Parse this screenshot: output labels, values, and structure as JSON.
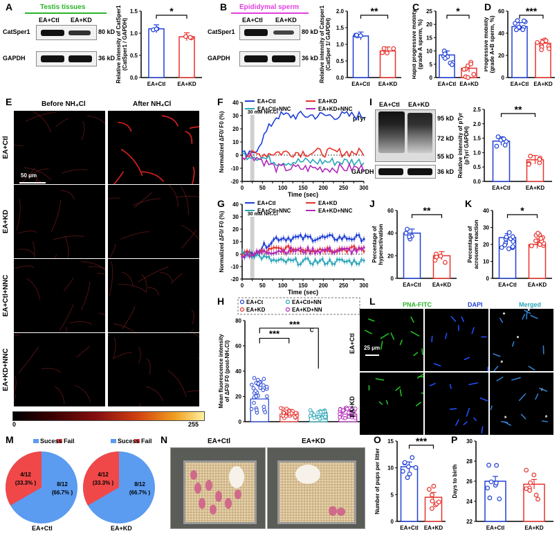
{
  "panels": {
    "A": {
      "letter": "A",
      "tissue_title": "Testis tissues",
      "groups": [
        "EA+Ctl",
        "EA+KD"
      ],
      "proteins": [
        "CatSper1",
        "GAPDH"
      ],
      "sizes": [
        "80 kD",
        "36 kD"
      ],
      "ylabel": "Relative intensity of CatSper1 (CatSper1 / GAPDH)",
      "sig": "*"
    },
    "B": {
      "letter": "B",
      "tissue_title": "Epididymal sperm",
      "groups": [
        "EA+Ctl",
        "EA+KD"
      ],
      "proteins": [
        "CatSper1",
        "GAPDH"
      ],
      "sizes": [
        "80 kD",
        "36 kD"
      ],
      "ylabel": "Relative intensity of Catsper1 (CatSper 1/ GAPDH)",
      "sig": "**"
    },
    "C": {
      "letter": "C",
      "ylabel": "Rapid progressive motility (grade A sperm, %)",
      "sig": "*"
    },
    "D": {
      "letter": "D",
      "ylabel": "Progressive mobility (grade A+B sperm, %)",
      "sig": "***"
    },
    "E": {
      "letter": "E",
      "col_titles": [
        "Before NH₄Cl",
        "After NH₄Cl"
      ],
      "row_labels": [
        "EA+Ctl",
        "EA+KD",
        "EA+Ctl+NNC",
        "EA+KD+NNC"
      ],
      "scale": "50 μm",
      "colorbar_min": "0",
      "colorbar_max": "255"
    },
    "F": {
      "letter": "F",
      "stim": "30 mM NH₄Cl",
      "ylabel": "Normalized ΔF0/ F0 (%)",
      "xlabel": "Time (sec)"
    },
    "G": {
      "letter": "G",
      "stim": "30 mM NH₄Cl",
      "ylabel": "Normalized ΔF0/ F0 (%)",
      "xlabel": "Time (sec)"
    },
    "H": {
      "letter": "H",
      "ylabel": "Mean fluorescence intensity of ΔF0/ F0 (post-NH₄Cl)",
      "legend": [
        "EA+Ct",
        "EA+KD",
        "EA+Ctl+NN",
        "EA+KD+NN"
      ],
      "sig1": "***",
      "sig2": "***",
      "sig3": "C"
    },
    "I": {
      "letter": "I",
      "groups": [
        "EA+Ctl",
        "EA+KD"
      ],
      "proteins": [
        "pTyr",
        "GAPDH"
      ],
      "sizes": [
        "95 kD",
        "72 kD",
        "55 kD",
        "36 kD"
      ],
      "ylabel": "Relative intensity of pTyr (pTyr/ GAPDH)",
      "sig": "**"
    },
    "J": {
      "letter": "J",
      "ylabel": "Percentage of hyperactivation",
      "sig": "**"
    },
    "K": {
      "letter": "K",
      "ylabel": "Percentage of acrosome reaction",
      "sig": "*"
    },
    "L": {
      "letter": "L",
      "col_titles": [
        "PNA-FITC",
        "DAPI",
        "Merged"
      ],
      "row_labels": [
        "EA+Ctl",
        "EA+KD"
      ],
      "scale": "25 μm"
    },
    "M": {
      "letter": "M",
      "legend": [
        "Sucess",
        "Fail"
      ],
      "pies": [
        {
          "label": "EA+Ctl",
          "fail_text": "4/12 (33.3% )",
          "success_text": "8/12 (66.7% )"
        },
        {
          "label": "EA+KD",
          "fail_text": "4/12 (33.3% )",
          "success_text": "8/12 (66.7% )"
        }
      ]
    },
    "N": {
      "letter": "N",
      "photo_titles": [
        "EA+Ctl",
        "EA+KD"
      ]
    },
    "O": {
      "letter": "O",
      "ylabel": "Number of pups per litter",
      "sig": "***"
    },
    "P": {
      "letter": "P",
      "ylabel": "Days to birth"
    }
  },
  "colors": {
    "blue": "#1f3fd6",
    "red": "#e8302b",
    "cyan": "#2aa6b8",
    "magenta": "#b02ab8",
    "green": "#2ab52a",
    "pink": "#e040e0",
    "pie_blue": "#5b9bf0",
    "pie_red": "#f04848"
  },
  "chart_data": [
    {
      "id": "A",
      "type": "bar",
      "categories": [
        "EA+Ctl",
        "EA+KD"
      ],
      "values": [
        1.1,
        0.92
      ],
      "ylim": [
        0,
        1.5
      ],
      "yticks": [
        "0.0",
        "0.5",
        "1.0",
        "1.5"
      ]
    },
    {
      "id": "B",
      "type": "bar",
      "categories": [
        "EA+Ctl",
        "EA+KD"
      ],
      "values": [
        1.25,
        0.8
      ],
      "ylim": [
        0,
        2.0
      ],
      "yticks": [
        "0.0",
        "0.5",
        "1.0",
        "1.5",
        "2.0"
      ]
    },
    {
      "id": "C",
      "type": "bar",
      "categories": [
        "EA+Ctl",
        "EA+KD"
      ],
      "values": [
        8.5,
        3.5
      ],
      "ylim": [
        0,
        25
      ],
      "yticks": [
        "0",
        "5",
        "10",
        "15",
        "20",
        "25"
      ]
    },
    {
      "id": "D",
      "type": "bar",
      "categories": [
        "EA+Ctl",
        "EA+KD"
      ],
      "values": [
        46,
        31
      ],
      "ylim": [
        0,
        60
      ],
      "yticks": [
        "0",
        "20",
        "40",
        "60"
      ]
    },
    {
      "id": "F",
      "type": "line",
      "xlim": [
        0,
        300
      ],
      "ylim": [
        -20,
        40
      ],
      "xticks": [
        "0",
        "25",
        "50",
        "75",
        "100",
        "125",
        "150",
        "175",
        "200",
        "225",
        "250",
        "275",
        "300"
      ],
      "yticks": [
        "-20",
        "-10",
        "0",
        "10",
        "20",
        "30",
        "40"
      ],
      "series": [
        {
          "name": "EA+Ctl",
          "final": 30
        },
        {
          "name": "EA+KD",
          "final": 2
        },
        {
          "name": "EA+Ctl+NNC",
          "final": -5
        },
        {
          "name": "EA+KD+NNC",
          "final": -10
        }
      ]
    },
    {
      "id": "G",
      "type": "line",
      "xlim": [
        0,
        300
      ],
      "ylim": [
        -20,
        40
      ],
      "xticks": [
        "0",
        "25",
        "50",
        "75",
        "100",
        "125",
        "150",
        "175",
        "200",
        "225",
        "250",
        "275",
        "300"
      ],
      "yticks": [
        "-20",
        "-10",
        "0",
        "10",
        "20",
        "30",
        "40"
      ],
      "series": [
        {
          "name": "EA+Ctl",
          "final": 13
        },
        {
          "name": "EA+KD",
          "final": 4
        },
        {
          "name": "EA+Ctl+NNC",
          "final": -6
        },
        {
          "name": "EA+KD+NNC",
          "final": 3
        }
      ]
    },
    {
      "id": "H",
      "type": "scatter",
      "categories": [
        "EA+Ct",
        "EA+KD",
        "EA+Ctl+NN",
        "EA+KD+NN"
      ],
      "values": [
        18,
        6,
        5,
        6
      ],
      "ylim": [
        0,
        80
      ],
      "yticks": [
        "0",
        "20",
        "40",
        "60",
        "80"
      ]
    },
    {
      "id": "I",
      "type": "bar",
      "categories": [
        "EA+Ctl",
        "EA+KD"
      ],
      "values": [
        1.4,
        0.75
      ],
      "ylim": [
        0,
        2.5
      ],
      "yticks": [
        "0.0",
        "0.5",
        "1.0",
        "1.5",
        "2.0",
        "2.5"
      ]
    },
    {
      "id": "J",
      "type": "bar",
      "categories": [
        "EA+Ctl",
        "EA+KD"
      ],
      "values": [
        40,
        20
      ],
      "ylim": [
        0,
        60
      ],
      "yticks": [
        "0",
        "20",
        "40",
        "60"
      ]
    },
    {
      "id": "K",
      "type": "bar",
      "categories": [
        "EA+Ctl",
        "EA+KD"
      ],
      "values": [
        24,
        20
      ],
      "ylim": [
        0,
        40
      ],
      "yticks": [
        "0",
        "10",
        "20",
        "30",
        "40"
      ]
    },
    {
      "id": "M",
      "type": "pie",
      "categories": [
        "Sucess",
        "Fail"
      ],
      "pies": [
        {
          "label": "EA+Ctl",
          "values": [
            8,
            4
          ]
        },
        {
          "label": "EA+KD",
          "values": [
            8,
            4
          ]
        }
      ]
    },
    {
      "id": "O",
      "type": "bar",
      "categories": [
        "EA+Ctl",
        "EA+KD"
      ],
      "values": [
        10.2,
        4.5
      ],
      "ylim": [
        0,
        15
      ],
      "yticks": [
        "0",
        "5",
        "10",
        "15"
      ]
    },
    {
      "id": "P",
      "type": "bar",
      "categories": [
        "EA+Ctl",
        "EA+KD"
      ],
      "values": [
        26,
        25.7
      ],
      "ylim": [
        22,
        30
      ],
      "yticks": [
        "22",
        "24",
        "26",
        "28",
        "30"
      ]
    }
  ]
}
